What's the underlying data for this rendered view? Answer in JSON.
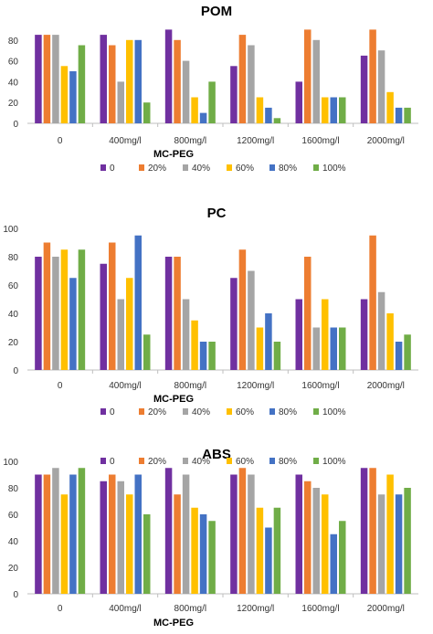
{
  "legend_labels": [
    "0",
    "20%",
    "40%",
    "60%",
    "80%",
    "100%"
  ],
  "series_colors": [
    "#7030A0",
    "#ED7D31",
    "#A5A5A5",
    "#FFC000",
    "#4472C4",
    "#70AD47"
  ],
  "chart_data": [
    {
      "type": "bar",
      "title": "POM",
      "xlabel": "MC-PEG",
      "ylabel": "",
      "ylim": [
        0,
        100
      ],
      "yticks": [
        0,
        20,
        40,
        60,
        80
      ],
      "grid": false,
      "legend_position": "bottom",
      "categories": [
        "0",
        "400mg/l",
        "800mg/l",
        "1200mg/l",
        "1600mg/l",
        "2000mg/l"
      ],
      "series": [
        {
          "name": "0",
          "values": [
            85,
            85,
            90,
            55,
            40,
            65
          ]
        },
        {
          "name": "20%",
          "values": [
            85,
            75,
            80,
            85,
            90,
            90
          ]
        },
        {
          "name": "40%",
          "values": [
            85,
            40,
            60,
            75,
            80,
            70
          ]
        },
        {
          "name": "60%",
          "values": [
            55,
            80,
            25,
            25,
            25,
            30
          ]
        },
        {
          "name": "80%",
          "values": [
            50,
            80,
            10,
            15,
            25,
            15
          ]
        },
        {
          "name": "100%",
          "values": [
            75,
            20,
            40,
            5,
            25,
            15
          ]
        }
      ]
    },
    {
      "type": "bar",
      "title": "PC",
      "xlabel": "MC-PEG",
      "ylabel": "",
      "ylim": [
        0,
        100
      ],
      "yticks": [
        0,
        20,
        40,
        60,
        80,
        100
      ],
      "grid": false,
      "legend_position": "bottom",
      "categories": [
        "0",
        "400mg/l",
        "800mg/l",
        "1200mg/l",
        "1600mg/l",
        "2000mg/l"
      ],
      "series": [
        {
          "name": "0",
          "values": [
            80,
            75,
            80,
            65,
            50,
            50
          ]
        },
        {
          "name": "20%",
          "values": [
            90,
            90,
            80,
            85,
            80,
            95
          ]
        },
        {
          "name": "40%",
          "values": [
            80,
            50,
            50,
            70,
            30,
            55
          ]
        },
        {
          "name": "60%",
          "values": [
            85,
            65,
            35,
            30,
            50,
            40
          ]
        },
        {
          "name": "80%",
          "values": [
            65,
            95,
            20,
            40,
            30,
            20
          ]
        },
        {
          "name": "100%",
          "values": [
            85,
            25,
            20,
            20,
            30,
            25
          ]
        }
      ]
    },
    {
      "type": "bar",
      "title": "ABS",
      "xlabel": "MC-PEG",
      "ylabel": "",
      "ylim": [
        0,
        100
      ],
      "yticks": [
        0,
        20,
        40,
        60,
        80,
        100
      ],
      "grid": false,
      "legend_position": "top",
      "categories": [
        "0",
        "400mg/l",
        "800mg/l",
        "1200mg/l",
        "1600mg/l",
        "2000mg/l"
      ],
      "series": [
        {
          "name": "0",
          "values": [
            90,
            85,
            95,
            90,
            90,
            95
          ]
        },
        {
          "name": "20%",
          "values": [
            90,
            90,
            75,
            95,
            85,
            95
          ]
        },
        {
          "name": "40%",
          "values": [
            95,
            85,
            90,
            90,
            80,
            75
          ]
        },
        {
          "name": "60%",
          "values": [
            75,
            75,
            65,
            65,
            75,
            90
          ]
        },
        {
          "name": "80%",
          "values": [
            90,
            90,
            60,
            50,
            45,
            75
          ]
        },
        {
          "name": "100%",
          "values": [
            95,
            60,
            55,
            65,
            55,
            80
          ]
        }
      ]
    }
  ]
}
